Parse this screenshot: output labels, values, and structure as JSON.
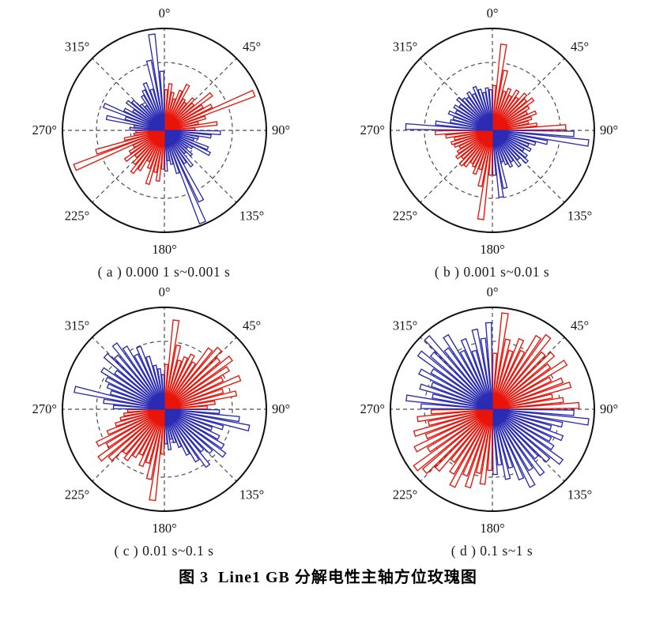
{
  "figure": {
    "title": "图 3  Line1 GB 分解电性主轴方位玫瑰图",
    "background": "#ffffff",
    "colors": {
      "red_series": "#e8150b",
      "blue_series": "#2b2bb4",
      "grid": "#4d4d4d",
      "outer_circle": "#111111",
      "label_text": "#111111"
    },
    "angle_labels": [
      "0°",
      "45°",
      "90°",
      "135°",
      "180°",
      "225°",
      "270°",
      "315°"
    ]
  },
  "chart_data": [
    {
      "type": "polar-rose-histogram",
      "id": "a",
      "caption": "( a ) 0.000 1 s~0.001 s",
      "angle_zero": "top",
      "clockwise": true,
      "n_bins": 72,
      "bin_width_deg": 5,
      "radial_ticks": [
        0.333,
        0.667,
        1.0
      ],
      "series": [
        {
          "name": "red",
          "quadrants_deg": [
            [
              0,
              90
            ],
            [
              180,
              270
            ]
          ]
        },
        {
          "name": "blue",
          "quadrants_deg": [
            [
              90,
              180
            ],
            [
              270,
              360
            ]
          ]
        }
      ],
      "lengths": [
        0.4,
        0.46,
        0.38,
        0.32,
        0.42,
        0.5,
        0.36,
        0.34,
        0.42,
        0.38,
        0.58,
        0.44,
        0.52,
        0.95,
        0.42,
        0.34,
        0.52,
        0.3,
        0.55,
        0.46,
        0.34,
        0.3,
        0.46,
        0.5,
        0.32,
        0.28,
        0.36,
        0.3,
        0.44,
        0.38,
        0.78,
        0.98,
        0.44,
        0.34,
        0.3,
        0.4,
        0.38,
        0.5,
        0.42,
        0.55,
        0.4,
        0.34,
        0.46,
        0.52,
        0.44,
        0.38,
        0.48,
        0.4,
        0.34,
        0.95,
        0.7,
        0.4,
        0.3,
        0.28,
        0.34,
        0.3,
        0.58,
        0.4,
        0.64,
        0.44,
        0.36,
        0.46,
        0.42,
        0.34,
        0.3,
        0.4,
        0.44,
        0.5,
        0.42,
        0.7,
        0.95,
        0.58
      ]
    },
    {
      "type": "polar-rose-histogram",
      "id": "b",
      "caption": "( b ) 0.001 s~0.01 s",
      "angle_zero": "top",
      "clockwise": true,
      "n_bins": 72,
      "bin_width_deg": 5,
      "radial_ticks": [
        0.333,
        0.667,
        1.0
      ],
      "series": [
        {
          "name": "red",
          "quadrants_deg": [
            [
              0,
              90
            ],
            [
              180,
              270
            ]
          ]
        },
        {
          "name": "blue",
          "quadrants_deg": [
            [
              90,
              180
            ],
            [
              270,
              360
            ]
          ]
        }
      ],
      "lengths": [
        0.44,
        0.85,
        0.6,
        0.4,
        0.44,
        0.38,
        0.46,
        0.4,
        0.48,
        0.44,
        0.5,
        0.42,
        0.38,
        0.46,
        0.4,
        0.36,
        0.44,
        0.72,
        0.8,
        0.95,
        0.55,
        0.44,
        0.38,
        0.42,
        0.36,
        0.42,
        0.46,
        0.38,
        0.44,
        0.36,
        0.4,
        0.36,
        0.32,
        0.58,
        0.66,
        0.44,
        0.44,
        0.88,
        0.56,
        0.4,
        0.46,
        0.4,
        0.38,
        0.44,
        0.46,
        0.4,
        0.44,
        0.4,
        0.36,
        0.4,
        0.42,
        0.38,
        0.46,
        0.56,
        0.85,
        0.56,
        0.42,
        0.4,
        0.46,
        0.4,
        0.44,
        0.4,
        0.46,
        0.42,
        0.4,
        0.44,
        0.4,
        0.46,
        0.42,
        0.38,
        0.42,
        0.4
      ]
    },
    {
      "type": "polar-rose-histogram",
      "id": "c",
      "caption": "( c ) 0.01 s~0.1 s",
      "angle_zero": "top",
      "clockwise": true,
      "n_bins": 72,
      "bin_width_deg": 5,
      "radial_ticks": [
        0.333,
        0.667,
        1.0
      ],
      "series": [
        {
          "name": "red",
          "quadrants_deg": [
            [
              0,
              90
            ],
            [
              180,
              270
            ]
          ]
        },
        {
          "name": "blue",
          "quadrants_deg": [
            [
              90,
              180
            ],
            [
              270,
              360
            ]
          ]
        }
      ],
      "lengths": [
        0.44,
        0.88,
        0.64,
        0.5,
        0.55,
        0.6,
        0.54,
        0.74,
        0.8,
        0.72,
        0.82,
        0.74,
        0.64,
        0.8,
        0.6,
        0.72,
        0.5,
        0.42,
        0.54,
        0.74,
        0.85,
        0.6,
        0.5,
        0.6,
        0.68,
        0.74,
        0.62,
        0.55,
        0.7,
        0.6,
        0.5,
        0.4,
        0.34,
        0.3,
        0.4,
        0.34,
        0.44,
        0.9,
        0.7,
        0.55,
        0.6,
        0.5,
        0.55,
        0.62,
        0.58,
        0.72,
        0.8,
        0.66,
        0.74,
        0.6,
        0.5,
        0.44,
        0.4,
        0.36,
        0.5,
        0.6,
        0.9,
        0.55,
        0.6,
        0.64,
        0.72,
        0.6,
        0.78,
        0.7,
        0.8,
        0.72,
        0.6,
        0.66,
        0.54,
        0.44,
        0.4,
        0.34
      ]
    },
    {
      "type": "polar-rose-histogram",
      "id": "d",
      "caption": "( d ) 0.1 s~1 s",
      "angle_zero": "top",
      "clockwise": true,
      "n_bins": 72,
      "bin_width_deg": 5,
      "radial_ticks": [
        0.333,
        0.667,
        1.0
      ],
      "series": [
        {
          "name": "red",
          "quadrants_deg": [
            [
              0,
              90
            ],
            [
              180,
              270
            ]
          ]
        },
        {
          "name": "blue",
          "quadrants_deg": [
            [
              90,
              180
            ],
            [
              270,
              360
            ]
          ]
        }
      ],
      "lengths": [
        0.55,
        0.95,
        0.7,
        0.6,
        0.74,
        0.64,
        0.84,
        0.9,
        0.74,
        0.8,
        0.7,
        0.85,
        0.64,
        0.74,
        0.8,
        0.6,
        0.7,
        0.85,
        0.8,
        0.95,
        0.7,
        0.6,
        0.74,
        0.64,
        0.7,
        0.85,
        0.74,
        0.64,
        0.8,
        0.7,
        0.85,
        0.74,
        0.6,
        0.7,
        0.55,
        0.64,
        0.6,
        0.74,
        0.64,
        0.8,
        0.7,
        0.85,
        0.74,
        0.64,
        0.8,
        0.9,
        0.95,
        0.74,
        0.85,
        0.7,
        0.8,
        0.64,
        0.74,
        0.6,
        0.7,
        0.85,
        0.6,
        0.74,
        0.64,
        0.8,
        0.7,
        0.9,
        0.8,
        0.95,
        0.74,
        0.85,
        0.64,
        0.74,
        0.6,
        0.8,
        0.7,
        0.85
      ]
    }
  ]
}
